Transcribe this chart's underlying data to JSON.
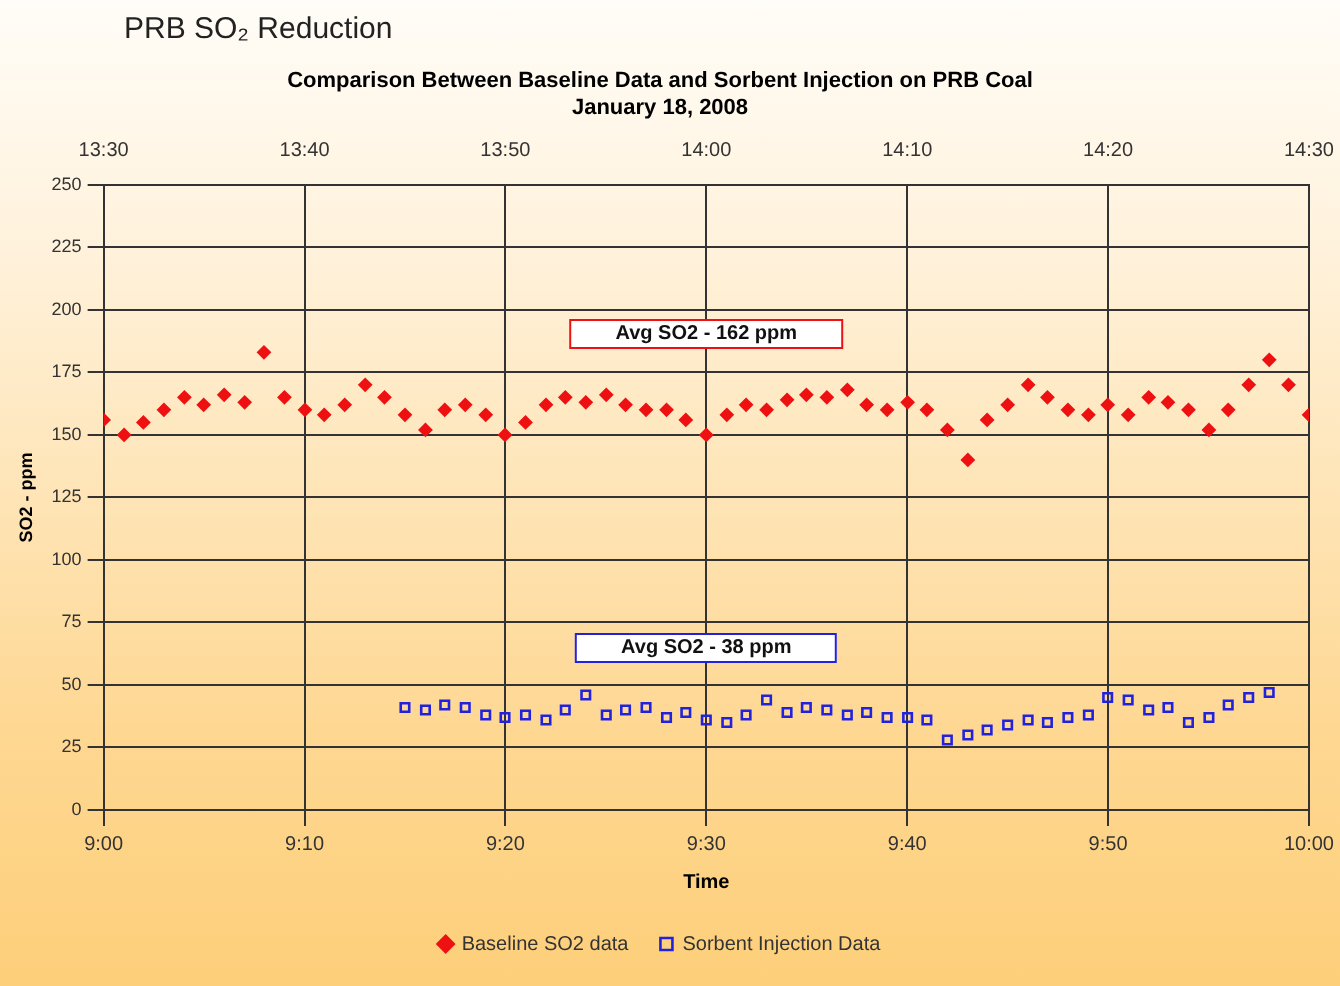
{
  "chart_data": {
    "type": "scatter",
    "title": "PRB SO₂ Reduction",
    "subtitle": "Comparison Between Baseline Data and Sorbent Injection on PRB Coal",
    "xlabel": "Time",
    "ylabel": "SO2 - ppm",
    "annotations": [
      "January 18, 2008",
      "Avg SO2 - 162 ppm",
      "Avg SO2 - 38 ppm"
    ],
    "xlim": [
      9,
      10
    ],
    "xticks": [
      {
        "value": 9,
        "label": "9:00"
      },
      {
        "value": 9.1667,
        "label": "9:10"
      },
      {
        "value": 9.3333,
        "label": "9:20"
      },
      {
        "value": 9.5,
        "label": "9:30"
      },
      {
        "value": 9.6667,
        "label": "9:40"
      },
      {
        "value": 9.8333,
        "label": "9:50"
      },
      {
        "value": 10,
        "label": "10:00"
      }
    ],
    "x2lim": [
      13.5,
      14.5
    ],
    "x2ticks": [
      {
        "value": 13.5,
        "label": "13:30"
      },
      {
        "value": 13.6667,
        "label": "13:40"
      },
      {
        "value": 13.8333,
        "label": "13:50"
      },
      {
        "value": 14,
        "label": "14:00"
      },
      {
        "value": 14.1667,
        "label": "14:10"
      },
      {
        "value": 14.3333,
        "label": "14:20"
      },
      {
        "value": 14.5,
        "label": "14:30"
      }
    ],
    "ylim": [
      0,
      250
    ],
    "yticks": [
      0,
      25,
      50,
      75,
      100,
      125,
      150,
      175,
      200,
      225,
      250
    ],
    "grid": true,
    "legend": "bottom",
    "series": [
      {
        "name": "Baseline SO2 data",
        "color": "#ee1111",
        "marker": "diamond",
        "axis": "x2",
        "x": [
          13.5,
          13.517,
          13.533,
          13.55,
          13.567,
          13.583,
          13.6,
          13.617,
          13.633,
          13.65,
          13.667,
          13.683,
          13.7,
          13.717,
          13.733,
          13.75,
          13.767,
          13.783,
          13.8,
          13.817,
          13.833,
          13.85,
          13.867,
          13.883,
          13.9,
          13.917,
          13.933,
          13.95,
          13.967,
          13.983,
          14,
          14.017,
          14.033,
          14.05,
          14.067,
          14.083,
          14.1,
          14.117,
          14.133,
          14.15,
          14.167,
          14.183,
          14.2,
          14.217,
          14.233,
          14.25,
          14.267,
          14.283,
          14.3,
          14.317,
          14.333,
          14.35,
          14.367,
          14.383,
          14.4,
          14.417,
          14.433,
          14.45,
          14.467,
          14.483,
          14.5
        ],
        "values": [
          156,
          150,
          155,
          160,
          165,
          162,
          166,
          163,
          183,
          165,
          160,
          158,
          162,
          170,
          165,
          158,
          152,
          160,
          162,
          158,
          150,
          155,
          162,
          165,
          163,
          166,
          162,
          160,
          160,
          156,
          150,
          158,
          162,
          160,
          164,
          166,
          165,
          168,
          162,
          160,
          163,
          160,
          152,
          140,
          156,
          162,
          170,
          165,
          160,
          158,
          162,
          158,
          165,
          163,
          160,
          152,
          160,
          170,
          180,
          170,
          158
        ]
      },
      {
        "name": "Sorbent Injection Data",
        "color": "#2222dd",
        "marker": "square",
        "x": [
          9.25,
          9.267,
          9.283,
          9.3,
          9.317,
          9.333,
          9.35,
          9.367,
          9.383,
          9.4,
          9.417,
          9.433,
          9.45,
          9.467,
          9.483,
          9.5,
          9.517,
          9.533,
          9.55,
          9.567,
          9.583,
          9.6,
          9.617,
          9.633,
          9.65,
          9.667,
          9.683,
          9.7,
          9.717,
          9.733,
          9.75,
          9.767,
          9.783,
          9.8,
          9.817,
          9.833,
          9.85,
          9.867,
          9.883,
          9.9,
          9.917,
          9.933,
          9.95,
          9.967
        ],
        "values": [
          41,
          40,
          42,
          41,
          38,
          37,
          38,
          36,
          40,
          46,
          38,
          40,
          41,
          37,
          39,
          36,
          35,
          38,
          44,
          39,
          41,
          40,
          38,
          39,
          37,
          37,
          36,
          28,
          30,
          32,
          34,
          36,
          35,
          37,
          38,
          45,
          44,
          40,
          41,
          35,
          37,
          42,
          45,
          47
        ]
      }
    ]
  }
}
